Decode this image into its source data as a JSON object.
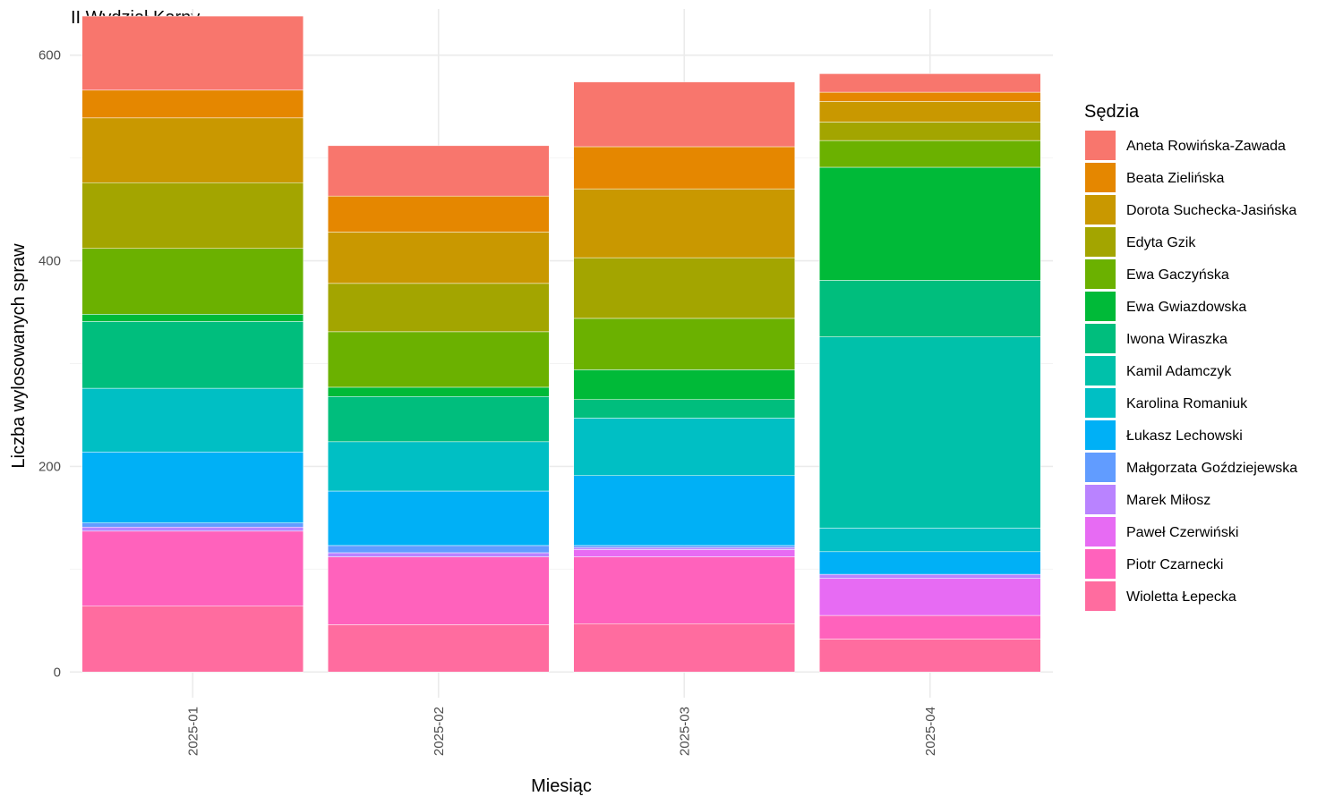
{
  "chart_data": {
    "type": "bar",
    "stacked": true,
    "title": "II Wydział Karny",
    "xlabel": "Miesiąc",
    "ylabel": "Liczba wylosowanych spraw",
    "ylim": [
      -25,
      645
    ],
    "yticks": [
      0,
      200,
      400,
      600
    ],
    "grid": true,
    "legend_title": "Sędzia",
    "legend_position": "right",
    "categories": [
      "2025-01",
      "2025-02",
      "2025-03",
      "2025-04"
    ],
    "series": [
      {
        "name": "Wioletta Łepecka",
        "color": "#FF6C9F",
        "values": [
          64,
          46,
          47,
          32
        ]
      },
      {
        "name": "Piotr Czarnecki",
        "color": "#FF62BC",
        "values": [
          73,
          66,
          65,
          23
        ]
      },
      {
        "name": "Paweł Czerwiński",
        "color": "#E76BF3",
        "values": [
          0,
          0,
          7,
          36
        ]
      },
      {
        "name": "Marek Miłosz",
        "color": "#B983FF",
        "values": [
          4,
          4,
          2,
          4
        ]
      },
      {
        "name": "Małgorzata Goździejewska",
        "color": "#619CFF",
        "values": [
          4,
          7,
          2,
          0
        ]
      },
      {
        "name": "Łukasz Lechowski",
        "color": "#00B0F6",
        "values": [
          69,
          53,
          68,
          22
        ]
      },
      {
        "name": "Karolina Romaniuk",
        "color": "#00BFC4",
        "values": [
          62,
          48,
          56,
          23
        ]
      },
      {
        "name": "Kamil Adamczyk",
        "color": "#00C1AA",
        "values": [
          0,
          0,
          0,
          186
        ]
      },
      {
        "name": "Iwona Wiraszka",
        "color": "#00BE7D",
        "values": [
          65,
          44,
          18,
          55
        ]
      },
      {
        "name": "Ewa Gwiazdowska",
        "color": "#00BA38",
        "values": [
          7,
          9,
          29,
          110
        ]
      },
      {
        "name": "Ewa Gaczyńska",
        "color": "#6BB100",
        "values": [
          64,
          54,
          50,
          26
        ]
      },
      {
        "name": "Edyta Gzik",
        "color": "#A3A500",
        "values": [
          64,
          47,
          59,
          18
        ]
      },
      {
        "name": "Dorota Suchecka-Jasińska",
        "color": "#C99800",
        "values": [
          63,
          50,
          67,
          20
        ]
      },
      {
        "name": "Beata Zielińska",
        "color": "#E58700",
        "values": [
          27,
          35,
          41,
          9
        ]
      },
      {
        "name": "Aneta Rowińska-Zawada",
        "color": "#F8766D",
        "values": [
          72,
          49,
          63,
          18
        ]
      }
    ]
  }
}
